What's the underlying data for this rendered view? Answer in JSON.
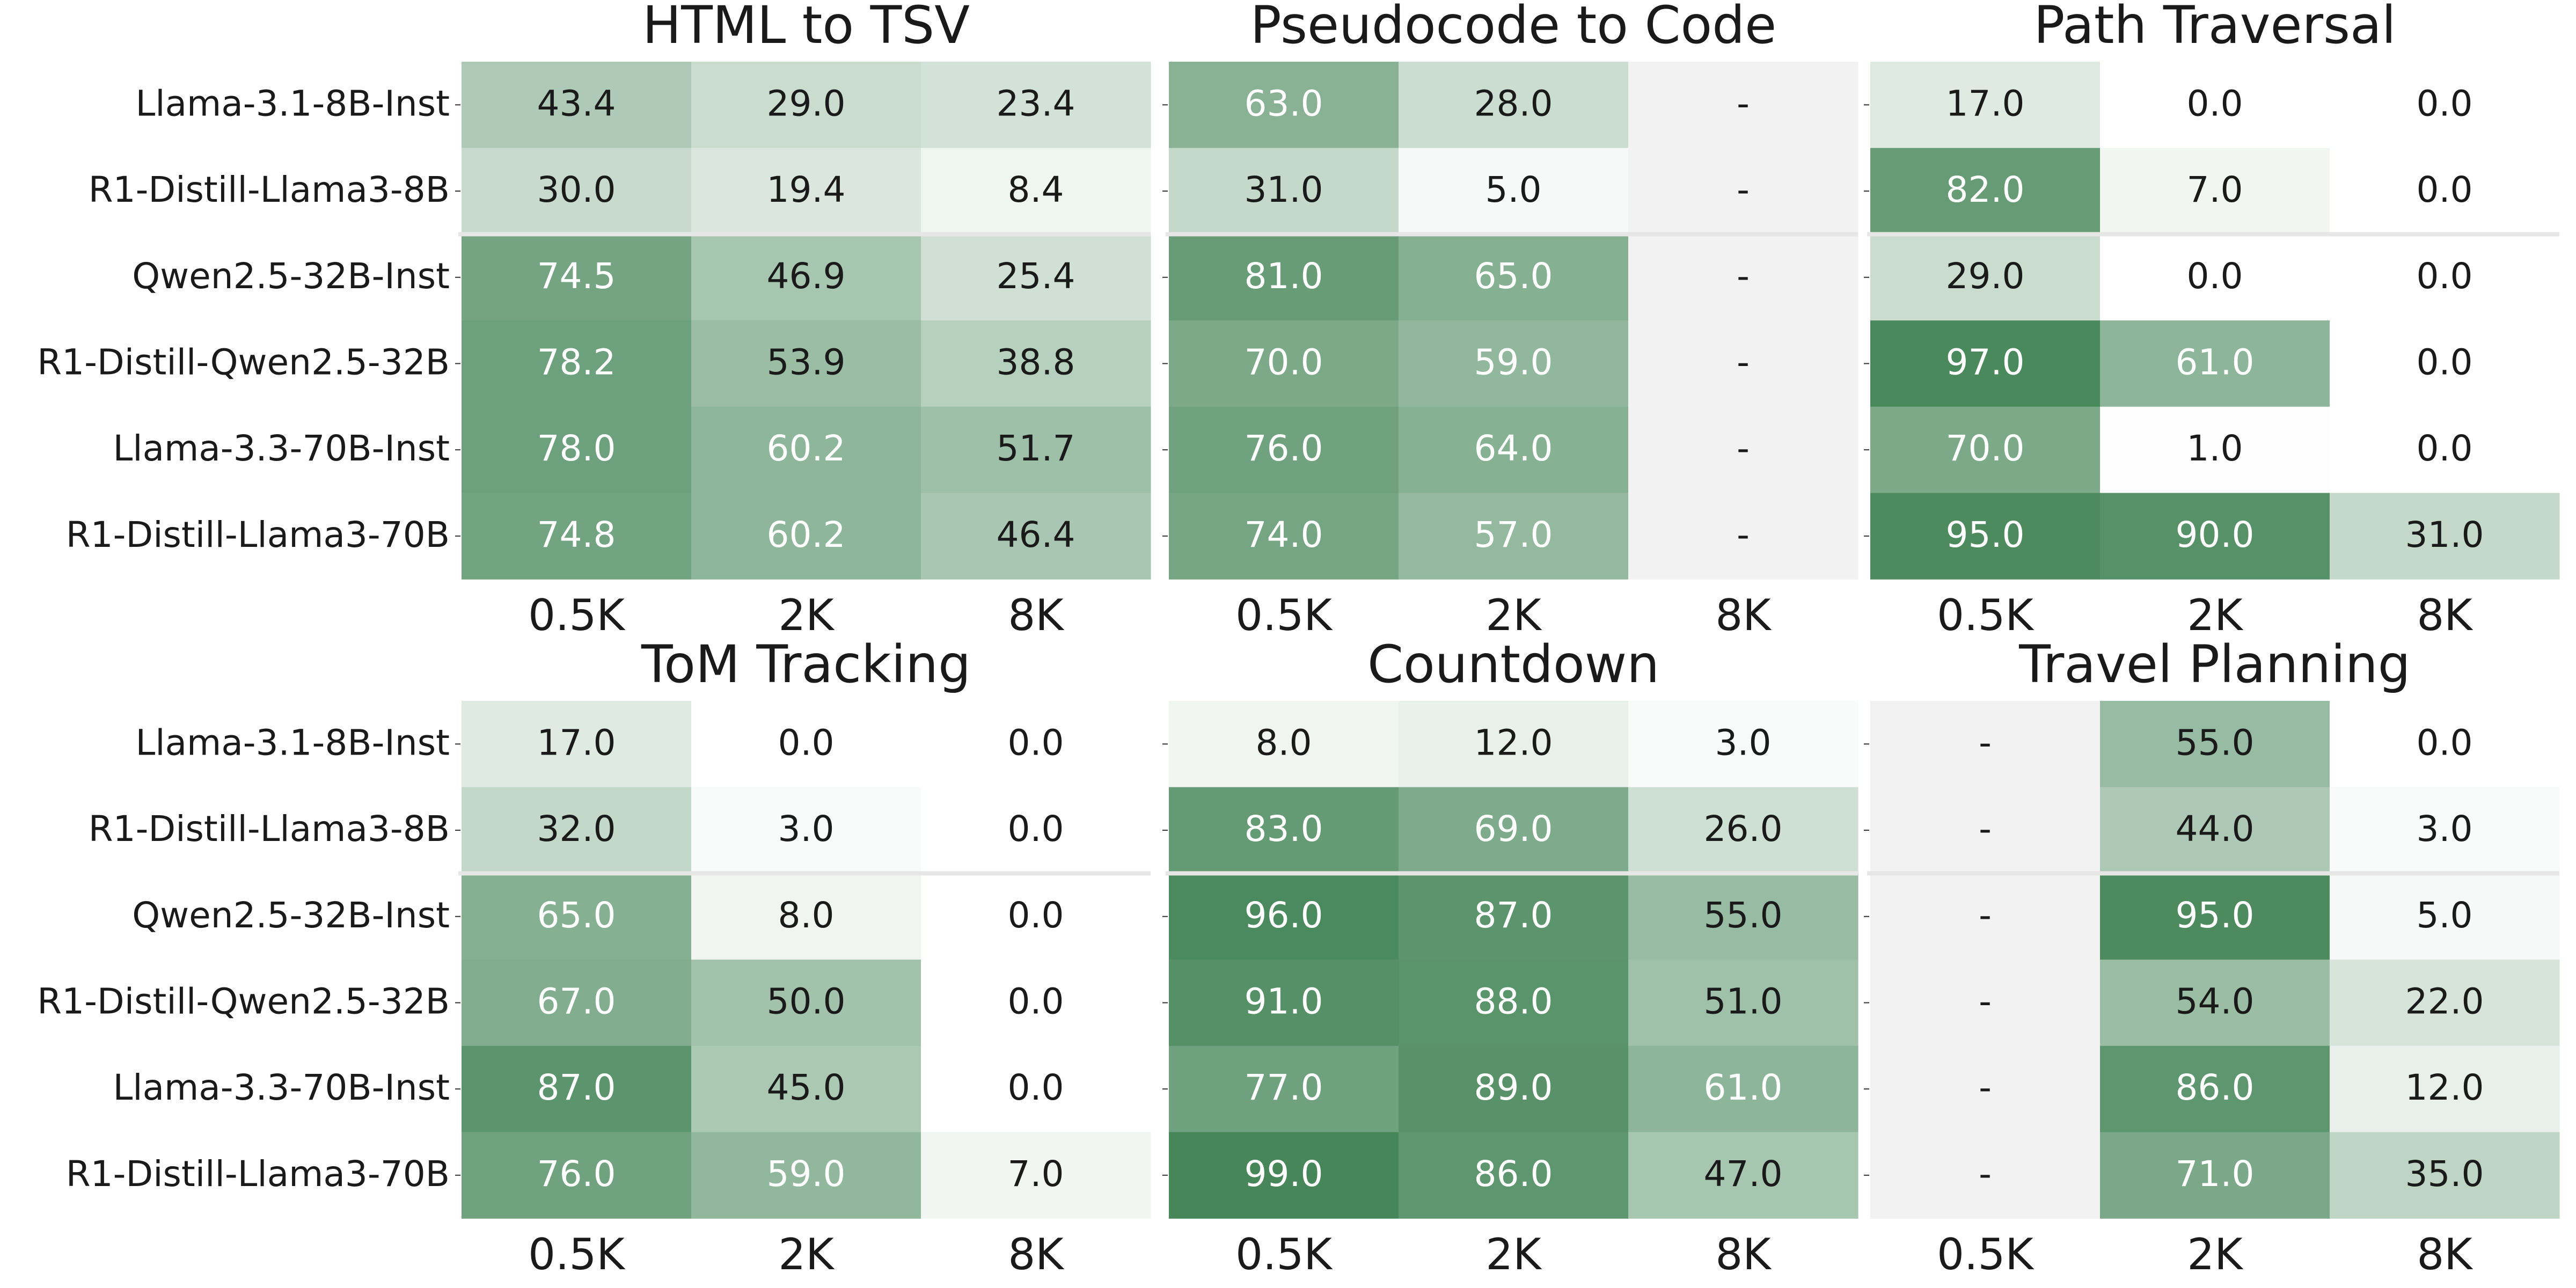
{
  "chart_data": [
    {
      "type": "heatmap",
      "title": "HTML to TSV",
      "rows": [
        "Llama-3.1-8B-Inst",
        "R1-Distill-Llama3-8B",
        "Qwen2.5-32B-Inst",
        "R1-Distill-Qwen2.5-32B",
        "Llama-3.3-70B-Inst",
        "R1-Distill-Llama3-70B"
      ],
      "columns": [
        "0.5K",
        "2K",
        "8K"
      ],
      "values": [
        [
          43.4,
          29.0,
          23.4
        ],
        [
          30.0,
          19.4,
          8.4
        ],
        [
          74.5,
          46.9,
          25.4
        ],
        [
          78.2,
          53.9,
          38.8
        ],
        [
          78.0,
          60.2,
          51.7
        ],
        [
          74.8,
          60.2,
          46.4
        ]
      ],
      "missing_label": "-"
    },
    {
      "type": "heatmap",
      "title": "Pseudocode to Code",
      "rows": [
        "Llama-3.1-8B-Inst",
        "R1-Distill-Llama3-8B",
        "Qwen2.5-32B-Inst",
        "R1-Distill-Qwen2.5-32B",
        "Llama-3.3-70B-Inst",
        "R1-Distill-Llama3-70B"
      ],
      "columns": [
        "0.5K",
        "2K",
        "8K"
      ],
      "values": [
        [
          63.0,
          28.0,
          null
        ],
        [
          31.0,
          5.0,
          null
        ],
        [
          81.0,
          65.0,
          null
        ],
        [
          70.0,
          59.0,
          null
        ],
        [
          76.0,
          64.0,
          null
        ],
        [
          74.0,
          57.0,
          null
        ]
      ],
      "missing_label": "-"
    },
    {
      "type": "heatmap",
      "title": "Path Traversal",
      "rows": [
        "Llama-3.1-8B-Inst",
        "R1-Distill-Llama3-8B",
        "Qwen2.5-32B-Inst",
        "R1-Distill-Qwen2.5-32B",
        "Llama-3.3-70B-Inst",
        "R1-Distill-Llama3-70B"
      ],
      "columns": [
        "0.5K",
        "2K",
        "8K"
      ],
      "values": [
        [
          17.0,
          0.0,
          0.0
        ],
        [
          82.0,
          7.0,
          0.0
        ],
        [
          29.0,
          0.0,
          0.0
        ],
        [
          97.0,
          61.0,
          0.0
        ],
        [
          70.0,
          1.0,
          0.0
        ],
        [
          95.0,
          90.0,
          31.0
        ]
      ],
      "missing_label": "-"
    },
    {
      "type": "heatmap",
      "title": "ToM Tracking",
      "rows": [
        "Llama-3.1-8B-Inst",
        "R1-Distill-Llama3-8B",
        "Qwen2.5-32B-Inst",
        "R1-Distill-Qwen2.5-32B",
        "Llama-3.3-70B-Inst",
        "R1-Distill-Llama3-70B"
      ],
      "columns": [
        "0.5K",
        "2K",
        "8K"
      ],
      "values": [
        [
          17.0,
          0.0,
          0.0
        ],
        [
          32.0,
          3.0,
          0.0
        ],
        [
          65.0,
          8.0,
          0.0
        ],
        [
          67.0,
          50.0,
          0.0
        ],
        [
          87.0,
          45.0,
          0.0
        ],
        [
          76.0,
          59.0,
          7.0
        ]
      ],
      "missing_label": "-"
    },
    {
      "type": "heatmap",
      "title": "Countdown",
      "rows": [
        "Llama-3.1-8B-Inst",
        "R1-Distill-Llama3-8B",
        "Qwen2.5-32B-Inst",
        "R1-Distill-Qwen2.5-32B",
        "Llama-3.3-70B-Inst",
        "R1-Distill-Llama3-70B"
      ],
      "columns": [
        "0.5K",
        "2K",
        "8K"
      ],
      "values": [
        [
          8.0,
          12.0,
          3.0
        ],
        [
          83.0,
          69.0,
          26.0
        ],
        [
          96.0,
          87.0,
          55.0
        ],
        [
          91.0,
          88.0,
          51.0
        ],
        [
          77.0,
          89.0,
          61.0
        ],
        [
          99.0,
          86.0,
          47.0
        ]
      ],
      "missing_label": "-"
    },
    {
      "type": "heatmap",
      "title": "Travel Planning",
      "rows": [
        "Llama-3.1-8B-Inst",
        "R1-Distill-Llama3-8B",
        "Qwen2.5-32B-Inst",
        "R1-Distill-Qwen2.5-32B",
        "Llama-3.3-70B-Inst",
        "R1-Distill-Llama3-70B"
      ],
      "columns": [
        "0.5K",
        "2K",
        "8K"
      ],
      "values": [
        [
          null,
          55.0,
          0.0
        ],
        [
          null,
          44.0,
          3.0
        ],
        [
          null,
          95.0,
          5.0
        ],
        [
          null,
          54.0,
          22.0
        ],
        [
          null,
          86.0,
          12.0
        ],
        [
          null,
          71.0,
          35.0
        ]
      ],
      "missing_label": "-"
    }
  ],
  "colors": {
    "high": "#448557",
    "low": "#ffffff",
    "missing": "#f2f2f2",
    "text_dark": "#1a1a1a",
    "text_light": "#ffffff"
  },
  "color_scale": {
    "min": 0,
    "max": 100
  }
}
